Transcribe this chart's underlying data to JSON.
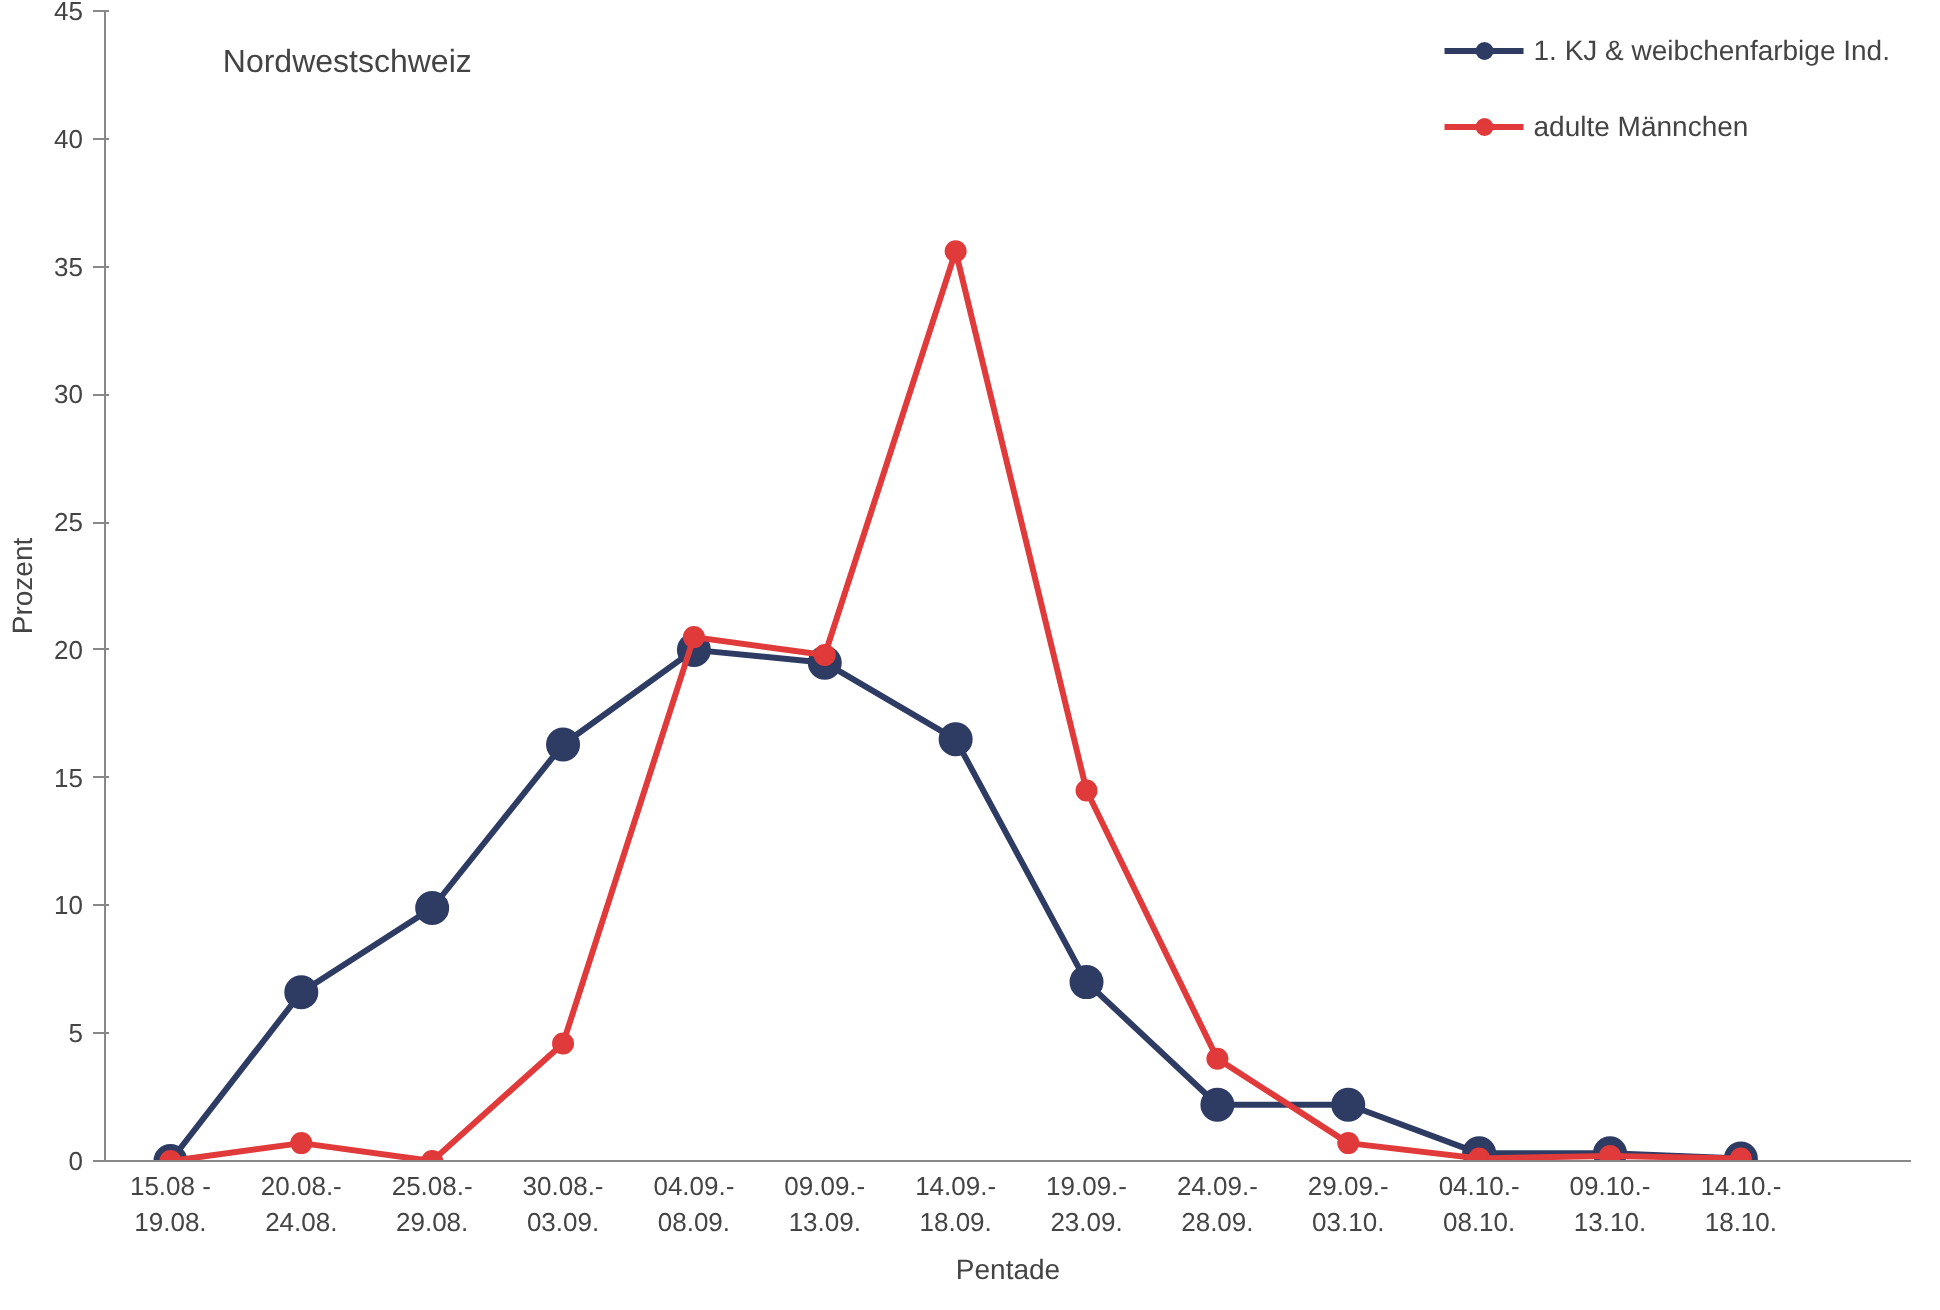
{
  "chart_data": {
    "type": "line",
    "title": "Nordwestschweiz",
    "xlabel": "Pentade",
    "ylabel": "Prozent",
    "categories": [
      "15.08 -\n19.08.",
      "20.08.-\n24.08.",
      "25.08.-\n29.08.",
      "30.08.-\n03.09.",
      "04.09.-\n08.09.",
      "09.09.-\n13.09.",
      "14.09.-\n18.09.",
      "19.09.-\n23.09.",
      "24.09.-\n28.09.",
      "29.09.-\n03.10.",
      "04.10.-\n08.10.",
      "09.10.-\n13.10.",
      "14.10.-\n18.10."
    ],
    "series": [
      {
        "name": "1. KJ & weibchenfarbige Ind.",
        "color": "#2e3c64",
        "values": [
          0,
          6.6,
          9.9,
          16.3,
          20.0,
          19.5,
          16.5,
          7.0,
          2.2,
          2.2,
          0.3,
          0.3,
          0.1
        ]
      },
      {
        "name": "adulte Männchen",
        "color": "#e03a3a",
        "values": [
          0,
          0.7,
          0,
          4.6,
          20.5,
          19.8,
          35.6,
          14.5,
          4.0,
          0.7,
          0.1,
          0.2,
          0.1
        ]
      }
    ],
    "ylim": [
      0,
      45
    ],
    "yticks": [
      0,
      5,
      10,
      15,
      20,
      25,
      30,
      35,
      40,
      45
    ],
    "grid": false,
    "legend": "top right",
    "marker": "circle",
    "line_style": "solid"
  }
}
